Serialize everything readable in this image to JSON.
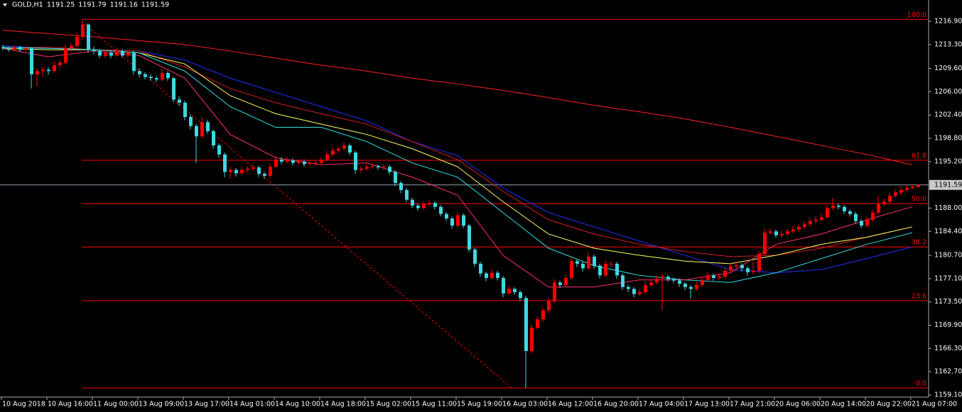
{
  "chart_data": {
    "type": "candlestick",
    "symbol": "GOLD,H1",
    "header_values": [
      1191.25,
      1191.79,
      1191.16,
      1191.59
    ],
    "up_color": "#ff0000",
    "down_color": "#3fd8e2",
    "ylim": [
      1158.77,
      1220.19
    ],
    "yticks": [
      {
        "value": 1216.9,
        "label": "1216.90"
      },
      {
        "value": 1213.3,
        "label": "1213.30"
      },
      {
        "value": 1209.6,
        "label": "1209.60"
      },
      {
        "value": 1206.0,
        "label": "1206.00"
      },
      {
        "value": 1202.4,
        "label": "1202.40"
      },
      {
        "value": 1198.8,
        "label": "1198.80"
      },
      {
        "value": 1195.2,
        "label": "1195.20"
      },
      {
        "value": 1188.0,
        "label": "1188.00"
      },
      {
        "value": 1184.4,
        "label": "1184.40"
      },
      {
        "value": 1180.7,
        "label": "1180.70"
      },
      {
        "value": 1177.1,
        "label": "1177.10"
      },
      {
        "value": 1173.5,
        "label": "1173.50"
      },
      {
        "value": 1169.9,
        "label": "1169.90"
      },
      {
        "value": 1166.3,
        "label": "1166.30"
      },
      {
        "value": 1162.7,
        "label": "1162.70"
      },
      {
        "value": 1159.1,
        "label": "1159.10"
      }
    ],
    "last_price": 1191.59,
    "x_labels": [
      "10 Aug 2018",
      "10 Aug 16:00",
      "11 Aug 00:00",
      "13 Aug 09:00",
      "13 Aug 17:00",
      "14 Aug 01:00",
      "14 Aug 10:00",
      "14 Aug 18:00",
      "15 Aug 02:00",
      "15 Aug 11:00",
      "15 Aug 19:00",
      "16 Aug 03:00",
      "16 Aug 12:00",
      "16 Aug 20:00",
      "17 Aug 04:00",
      "17 Aug 13:00",
      "17 Aug 21:00",
      "20 Aug 06:00",
      "20 Aug 14:00",
      "20 Aug 22:00",
      "21 Aug 07:00"
    ],
    "candles": [
      [
        1212.9,
        1213.3,
        1212.4,
        1212.7
      ],
      [
        1212.7,
        1213.0,
        1212.2,
        1212.5
      ],
      [
        1212.5,
        1213.2,
        1212.3,
        1212.9
      ],
      [
        1212.9,
        1213.1,
        1212.2,
        1212.5
      ],
      [
        1212.5,
        1213.0,
        1212.3,
        1212.7
      ],
      [
        1212.7,
        1212.9,
        1206.5,
        1208.7
      ],
      [
        1208.7,
        1209.6,
        1206.8,
        1209.2
      ],
      [
        1209.2,
        1209.9,
        1208.4,
        1209.4
      ],
      [
        1209.4,
        1209.8,
        1208.6,
        1209.2
      ],
      [
        1209.2,
        1210.6,
        1208.9,
        1210.1
      ],
      [
        1210.1,
        1211.0,
        1209.6,
        1210.5
      ],
      [
        1210.5,
        1213.3,
        1210.2,
        1212.7
      ],
      [
        1212.7,
        1213.6,
        1212.2,
        1213.1
      ],
      [
        1213.1,
        1215.2,
        1212.8,
        1214.5
      ],
      [
        1214.5,
        1216.9,
        1214.1,
        1216.4
      ],
      [
        1216.4,
        1216.6,
        1212.0,
        1212.5
      ],
      [
        1212.5,
        1213.0,
        1211.8,
        1212.3
      ],
      [
        1212.3,
        1212.6,
        1211.2,
        1211.6
      ],
      [
        1211.6,
        1212.5,
        1211.3,
        1212.0
      ],
      [
        1212.0,
        1212.3,
        1211.2,
        1211.6
      ],
      [
        1211.6,
        1212.8,
        1211.4,
        1212.3
      ],
      [
        1212.3,
        1212.6,
        1211.3,
        1211.6
      ],
      [
        1211.6,
        1212.6,
        1211.3,
        1212.1
      ],
      [
        1212.1,
        1212.4,
        1208.6,
        1209.2
      ],
      [
        1209.2,
        1209.6,
        1208.2,
        1208.7
      ],
      [
        1208.7,
        1209.0,
        1207.9,
        1208.3
      ],
      [
        1208.3,
        1208.7,
        1207.7,
        1208.1
      ],
      [
        1208.1,
        1208.4,
        1207.5,
        1207.9
      ],
      [
        1207.9,
        1209.5,
        1207.6,
        1208.9
      ],
      [
        1208.9,
        1209.2,
        1207.7,
        1208.1
      ],
      [
        1208.1,
        1208.3,
        1204.4,
        1204.8
      ],
      [
        1204.8,
        1205.3,
        1203.8,
        1204.3
      ],
      [
        1204.3,
        1204.6,
        1201.6,
        1202.1
      ],
      [
        1202.1,
        1202.5,
        1200.2,
        1200.7
      ],
      [
        1200.7,
        1201.0,
        1195.0,
        1199.1
      ],
      [
        1199.1,
        1202.1,
        1198.8,
        1201.3
      ],
      [
        1201.3,
        1201.7,
        1199.5,
        1199.9
      ],
      [
        1199.9,
        1200.2,
        1197.2,
        1197.7
      ],
      [
        1197.7,
        1198.0,
        1195.8,
        1196.3
      ],
      [
        1196.3,
        1196.6,
        1192.8,
        1193.6
      ],
      [
        1193.6,
        1194.4,
        1192.6,
        1193.9
      ],
      [
        1193.9,
        1194.2,
        1192.9,
        1193.4
      ],
      [
        1193.4,
        1194.4,
        1193.1,
        1193.9
      ],
      [
        1193.9,
        1194.5,
        1193.5,
        1194.1
      ],
      [
        1194.1,
        1194.8,
        1193.8,
        1194.3
      ],
      [
        1194.3,
        1194.6,
        1192.8,
        1193.3
      ],
      [
        1193.3,
        1193.6,
        1192.5,
        1193.0
      ],
      [
        1193.0,
        1194.9,
        1192.7,
        1194.4
      ],
      [
        1194.4,
        1196.0,
        1194.1,
        1195.5
      ],
      [
        1195.5,
        1195.9,
        1194.8,
        1195.2
      ],
      [
        1195.2,
        1195.9,
        1194.9,
        1195.4
      ],
      [
        1195.4,
        1195.7,
        1194.6,
        1195.0
      ],
      [
        1195.0,
        1195.6,
        1194.7,
        1195.2
      ],
      [
        1195.2,
        1195.5,
        1194.4,
        1194.8
      ],
      [
        1194.8,
        1195.4,
        1194.5,
        1195.0
      ],
      [
        1195.0,
        1195.3,
        1194.6,
        1195.0
      ],
      [
        1195.0,
        1195.9,
        1194.7,
        1195.5
      ],
      [
        1195.5,
        1196.8,
        1195.2,
        1196.3
      ],
      [
        1196.3,
        1197.4,
        1196.0,
        1196.9
      ],
      [
        1196.9,
        1197.6,
        1196.5,
        1197.2
      ],
      [
        1197.2,
        1198.2,
        1196.9,
        1197.7
      ],
      [
        1197.7,
        1198.0,
        1196.2,
        1196.6
      ],
      [
        1196.6,
        1196.9,
        1193.3,
        1193.9
      ],
      [
        1193.9,
        1194.5,
        1193.5,
        1194.1
      ],
      [
        1194.1,
        1194.8,
        1193.8,
        1194.4
      ],
      [
        1194.4,
        1194.9,
        1194.1,
        1194.5
      ],
      [
        1194.5,
        1194.8,
        1193.9,
        1194.3
      ],
      [
        1194.3,
        1194.8,
        1194.0,
        1194.4
      ],
      [
        1194.4,
        1194.7,
        1193.2,
        1193.6
      ],
      [
        1193.6,
        1193.9,
        1191.4,
        1191.9
      ],
      [
        1191.9,
        1192.2,
        1190.3,
        1190.8
      ],
      [
        1190.8,
        1191.1,
        1188.9,
        1189.3
      ],
      [
        1189.3,
        1189.6,
        1188.0,
        1188.4
      ],
      [
        1188.4,
        1188.7,
        1187.6,
        1188.0
      ],
      [
        1188.0,
        1189.0,
        1187.7,
        1188.6
      ],
      [
        1188.6,
        1189.2,
        1188.3,
        1188.8
      ],
      [
        1188.8,
        1189.1,
        1187.8,
        1188.2
      ],
      [
        1188.2,
        1188.5,
        1186.7,
        1187.1
      ],
      [
        1187.1,
        1187.4,
        1186.0,
        1186.4
      ],
      [
        1186.4,
        1186.7,
        1184.8,
        1185.3
      ],
      [
        1185.3,
        1187.4,
        1185.0,
        1186.9
      ],
      [
        1186.9,
        1187.2,
        1184.9,
        1185.3
      ],
      [
        1185.3,
        1185.6,
        1181.2,
        1181.6
      ],
      [
        1181.6,
        1181.9,
        1178.9,
        1179.4
      ],
      [
        1179.4,
        1179.7,
        1177.4,
        1177.9
      ],
      [
        1177.9,
        1178.2,
        1176.7,
        1177.2
      ],
      [
        1177.2,
        1178.5,
        1176.9,
        1178.0
      ],
      [
        1178.0,
        1178.3,
        1176.8,
        1177.2
      ],
      [
        1177.2,
        1177.5,
        1174.2,
        1174.8
      ],
      [
        1174.8,
        1176.0,
        1174.5,
        1175.5
      ],
      [
        1175.5,
        1175.8,
        1174.6,
        1175.0
      ],
      [
        1175.0,
        1175.3,
        1173.6,
        1174.1
      ],
      [
        1174.1,
        1174.4,
        1160.2,
        1165.9
      ],
      [
        1165.9,
        1170.1,
        1165.5,
        1169.5
      ],
      [
        1169.5,
        1171.3,
        1169.2,
        1170.8
      ],
      [
        1170.8,
        1172.7,
        1170.4,
        1172.2
      ],
      [
        1172.2,
        1174.1,
        1171.8,
        1173.6
      ],
      [
        1173.6,
        1177.0,
        1173.3,
        1176.5
      ],
      [
        1176.5,
        1176.8,
        1175.6,
        1176.1
      ],
      [
        1176.1,
        1177.7,
        1175.8,
        1177.2
      ],
      [
        1177.2,
        1180.6,
        1176.9,
        1179.8
      ],
      [
        1179.8,
        1180.1,
        1178.9,
        1179.4
      ],
      [
        1179.4,
        1179.7,
        1178.2,
        1178.7
      ],
      [
        1178.7,
        1181.2,
        1178.4,
        1180.5
      ],
      [
        1180.5,
        1180.8,
        1178.6,
        1179.1
      ],
      [
        1179.1,
        1179.4,
        1177.1,
        1177.6
      ],
      [
        1177.6,
        1179.9,
        1177.3,
        1179.4
      ],
      [
        1179.4,
        1179.8,
        1178.9,
        1179.4
      ],
      [
        1179.4,
        1179.7,
        1177.1,
        1177.6
      ],
      [
        1177.6,
        1177.9,
        1175.3,
        1175.8
      ],
      [
        1175.8,
        1176.1,
        1175.0,
        1175.5
      ],
      [
        1175.5,
        1175.8,
        1174.2,
        1174.7
      ],
      [
        1174.7,
        1175.5,
        1174.4,
        1175.0
      ],
      [
        1175.0,
        1176.6,
        1174.7,
        1176.1
      ],
      [
        1176.1,
        1177.0,
        1175.8,
        1176.5
      ],
      [
        1176.5,
        1177.6,
        1176.2,
        1177.1
      ],
      [
        1177.1,
        1177.9,
        1172.2,
        1177.4
      ],
      [
        1177.4,
        1177.7,
        1176.6,
        1177.0
      ],
      [
        1177.0,
        1177.3,
        1176.4,
        1176.8
      ],
      [
        1176.8,
        1177.1,
        1175.8,
        1176.3
      ],
      [
        1176.3,
        1176.6,
        1175.3,
        1175.8
      ],
      [
        1175.8,
        1176.1,
        1174.0,
        1175.5
      ],
      [
        1175.5,
        1176.6,
        1175.2,
        1176.1
      ],
      [
        1176.1,
        1177.4,
        1175.8,
        1176.9
      ],
      [
        1176.9,
        1178.1,
        1176.6,
        1177.6
      ],
      [
        1177.6,
        1177.9,
        1176.8,
        1177.2
      ],
      [
        1177.2,
        1177.9,
        1176.9,
        1177.4
      ],
      [
        1177.4,
        1178.8,
        1177.1,
        1178.3
      ],
      [
        1178.3,
        1179.5,
        1178.0,
        1179.0
      ],
      [
        1179.0,
        1179.7,
        1178.7,
        1179.2
      ],
      [
        1179.2,
        1179.5,
        1178.2,
        1178.7
      ],
      [
        1178.7,
        1179.0,
        1177.6,
        1178.1
      ],
      [
        1178.1,
        1179.8,
        1177.8,
        1178.3
      ],
      [
        1178.3,
        1181.4,
        1178.0,
        1180.9
      ],
      [
        1180.9,
        1184.8,
        1180.6,
        1184.2
      ],
      [
        1184.2,
        1184.9,
        1183.9,
        1184.4
      ],
      [
        1184.4,
        1184.7,
        1183.4,
        1183.8
      ],
      [
        1183.8,
        1184.5,
        1183.5,
        1184.0
      ],
      [
        1184.0,
        1184.9,
        1183.7,
        1184.4
      ],
      [
        1184.4,
        1185.2,
        1184.1,
        1184.7
      ],
      [
        1184.7,
        1185.6,
        1184.4,
        1185.1
      ],
      [
        1185.1,
        1186.0,
        1184.8,
        1185.5
      ],
      [
        1185.5,
        1186.5,
        1185.2,
        1186.0
      ],
      [
        1186.0,
        1186.7,
        1185.7,
        1186.2
      ],
      [
        1186.2,
        1187.1,
        1185.9,
        1186.6
      ],
      [
        1186.6,
        1188.5,
        1186.3,
        1188.0
      ],
      [
        1188.0,
        1189.6,
        1187.7,
        1188.4
      ],
      [
        1188.4,
        1188.7,
        1187.8,
        1188.2
      ],
      [
        1188.2,
        1188.5,
        1187.1,
        1187.5
      ],
      [
        1187.5,
        1187.8,
        1186.7,
        1187.1
      ],
      [
        1187.1,
        1187.4,
        1185.6,
        1186.0
      ],
      [
        1186.0,
        1186.3,
        1184.9,
        1185.3
      ],
      [
        1185.3,
        1186.7,
        1185.0,
        1186.2
      ],
      [
        1186.2,
        1187.8,
        1185.9,
        1187.3
      ],
      [
        1187.3,
        1190.0,
        1187.0,
        1188.6
      ],
      [
        1188.6,
        1189.5,
        1188.3,
        1189.0
      ],
      [
        1189.0,
        1190.4,
        1188.7,
        1189.9
      ],
      [
        1189.9,
        1190.9,
        1189.6,
        1190.4
      ],
      [
        1190.4,
        1191.3,
        1190.1,
        1190.8
      ],
      [
        1190.8,
        1191.6,
        1190.5,
        1191.1
      ],
      [
        1191.1,
        1191.7,
        1190.9,
        1191.3
      ],
      [
        1191.25,
        1191.79,
        1191.16,
        1191.59
      ]
    ],
    "moving_averages": [
      {
        "color": "#ff2020",
        "values": [
          1215.5,
          1215.0,
          1214.5,
          1213.9,
          1213.3,
          1212.3,
          1211.2,
          1210.1,
          1209.2,
          1208.1,
          1207.2,
          1206.2,
          1205.1,
          1203.9,
          1202.9,
          1201.8,
          1200.5,
          1199.1,
          1197.7,
          1196.3,
          1194.7
        ]
      },
      {
        "color": "#2030ff",
        "values": [
          1213.1,
          1212.7,
          1212.5,
          1212.3,
          1210.9,
          1208.1,
          1205.9,
          1203.7,
          1201.5,
          1198.3,
          1196.1,
          1191.1,
          1187.3,
          1185.1,
          1182.9,
          1180.7,
          1178.5,
          1178.0,
          1178.5,
          1180.2,
          1182.0
        ]
      },
      {
        "color": "#d02020",
        "values": [
          1212.8,
          1212.9,
          1212.5,
          1212.3,
          1209.8,
          1206.5,
          1204.3,
          1202.6,
          1201.0,
          1198.3,
          1195.5,
          1190.6,
          1186.2,
          1184.0,
          1182.4,
          1181.3,
          1180.5,
          1180.7,
          1181.8,
          1183.5,
          1185.1
        ]
      },
      {
        "color": "#ffff60",
        "values": [
          1212.7,
          1212.5,
          1212.5,
          1212.0,
          1210.3,
          1205.4,
          1202.6,
          1201.0,
          1199.4,
          1197.2,
          1194.4,
          1189.0,
          1184.0,
          1181.8,
          1180.7,
          1179.8,
          1179.4,
          1180.7,
          1182.4,
          1183.5,
          1185.1
        ]
      },
      {
        "color": "#30e0e0",
        "values": [
          1212.9,
          1212.7,
          1212.5,
          1212.0,
          1209.2,
          1203.7,
          1200.5,
          1200.5,
          1198.3,
          1195.0,
          1192.8,
          1187.3,
          1181.8,
          1179.1,
          1177.6,
          1176.9,
          1176.5,
          1178.0,
          1180.2,
          1182.4,
          1184.2
        ]
      },
      {
        "color": "#ff3070",
        "values": [
          1212.7,
          1211.4,
          1212.3,
          1211.6,
          1208.1,
          1199.4,
          1195.8,
          1194.7,
          1195.0,
          1192.8,
          1190.0,
          1180.7,
          1175.8,
          1175.8,
          1176.9,
          1176.9,
          1178.0,
          1182.4,
          1184.0,
          1186.2,
          1188.2
        ]
      }
    ],
    "fibonacci": {
      "color": "#ff0000",
      "labels": [
        "100.0",
        "61.8",
        "50.0",
        "38.2",
        "23.6",
        "0.0"
      ],
      "values": [
        1217.2,
        1195.4,
        1188.7,
        1182.0,
        1173.7,
        1160.2
      ]
    },
    "trendline": {
      "color": "#ff0000",
      "values": [
        1216.9,
        1160.2
      ]
    }
  }
}
